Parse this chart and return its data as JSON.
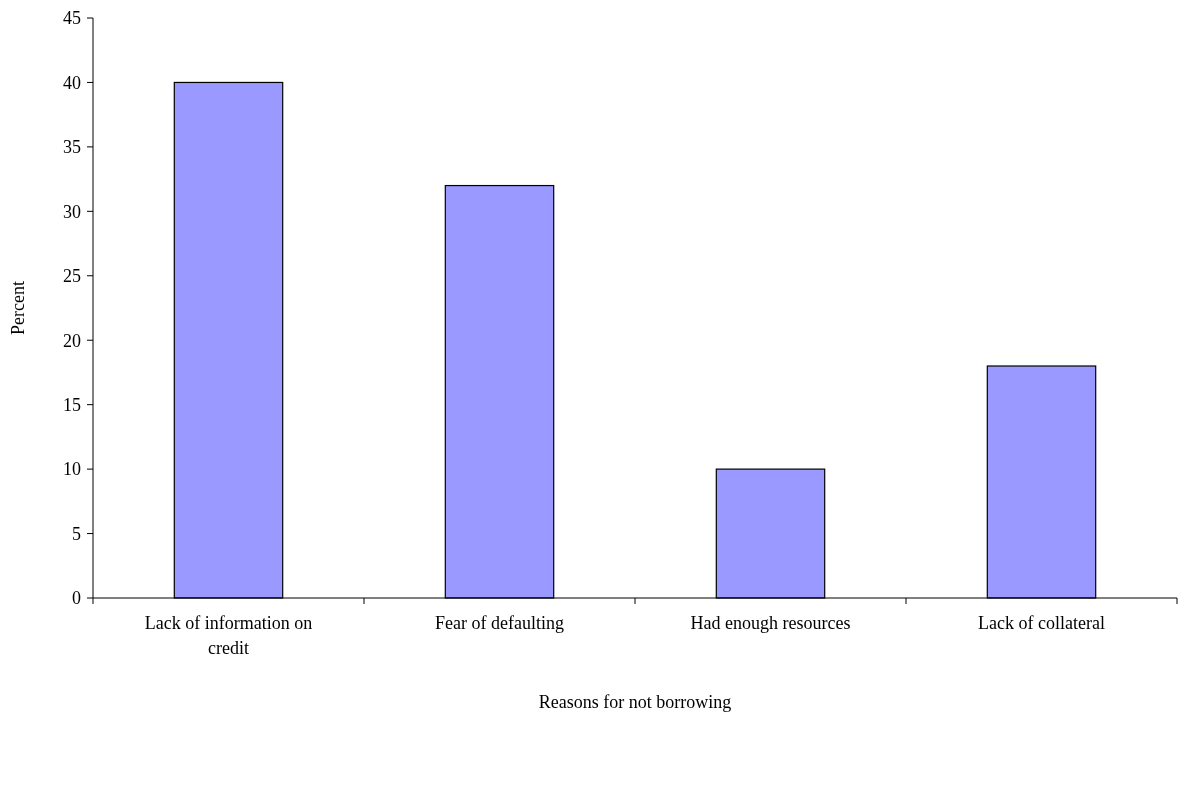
{
  "chart_data": {
    "type": "bar",
    "xlabel": "Reasons for not borrowing",
    "ylabel": "Percent",
    "categories": [
      "Lack of information on credit",
      "Fear of defaulting",
      "Had enough resources",
      "Lack of collateral"
    ],
    "values": [
      40,
      32,
      10,
      18
    ],
    "color": "#9999ff",
    "ylim": [
      0,
      45
    ],
    "yticks": [
      0,
      5,
      10,
      15,
      20,
      25,
      30,
      35,
      40,
      45
    ],
    "grid": false
  }
}
